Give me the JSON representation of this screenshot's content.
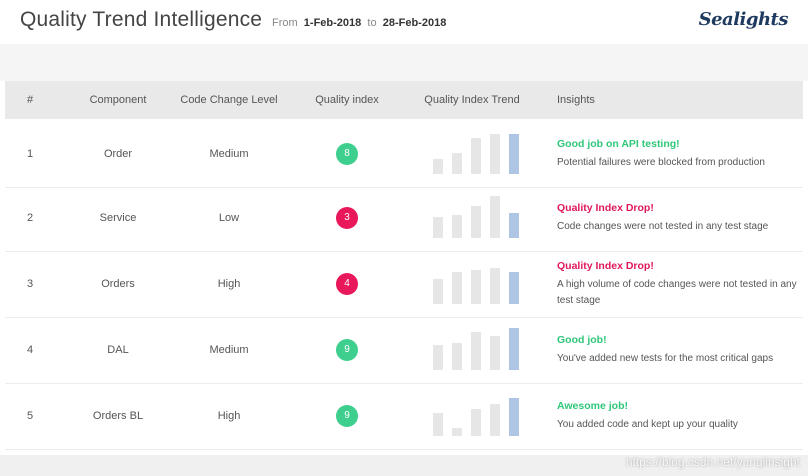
{
  "header": {
    "title": "Quality Trend Intelligence",
    "from_label": "From",
    "from_date": "1-Feb-2018",
    "to_label": "to",
    "to_date": "28-Feb-2018",
    "logo_text": "Sealights"
  },
  "table": {
    "columns": [
      "#",
      "Component",
      "Code Change Level",
      "Quality index",
      "Quality Index Trend",
      "Insights"
    ],
    "rows": [
      {
        "num": "1",
        "component": "Order",
        "change_level": "Medium",
        "quality_index": "8",
        "badge_color": "#3ecf8e",
        "trend": [
          0.35,
          0.5,
          0.85,
          0.95,
          0.95
        ],
        "insight_title": "Good job on API testing!",
        "insight_color": "#2fc77a",
        "insight_desc": "Potential failures were blocked from production"
      },
      {
        "num": "2",
        "component": "Service",
        "change_level": "Low",
        "quality_index": "3",
        "badge_color": "#e8185a",
        "trend": [
          0.5,
          0.55,
          0.75,
          1.0,
          0.6
        ],
        "insight_title": "Quality Index Drop!",
        "insight_color": "#e0185a",
        "insight_desc": "Code changes were not tested in any test stage"
      },
      {
        "num": "3",
        "component": "Orders",
        "change_level": "High",
        "quality_index": "4",
        "badge_color": "#e8185a",
        "trend": [
          0.6,
          0.75,
          0.8,
          0.85,
          0.75
        ],
        "insight_title": "Quality Index Drop!",
        "insight_color": "#e0185a",
        "insight_desc": "A high volume of code changes were not tested in any test stage"
      },
      {
        "num": "4",
        "component": "DAL",
        "change_level": "Medium",
        "quality_index": "9",
        "badge_color": "#3ecf8e",
        "trend": [
          0.6,
          0.65,
          0.9,
          0.8,
          1.0
        ],
        "insight_title": "Good job!",
        "insight_color": "#2fc77a",
        "insight_desc": "You've added new tests for the most critical gaps"
      },
      {
        "num": "5",
        "component": "Orders BL",
        "change_level": "High",
        "quality_index": "9",
        "badge_color": "#3ecf8e",
        "trend": [
          0.55,
          0.2,
          0.65,
          0.75,
          0.9
        ],
        "insight_title": "Awesome job!",
        "insight_color": "#2fc77a",
        "insight_desc": "You added code and kept up your quality"
      }
    ]
  },
  "watermark": "https://blog.csdn.net/yunqiinsight"
}
